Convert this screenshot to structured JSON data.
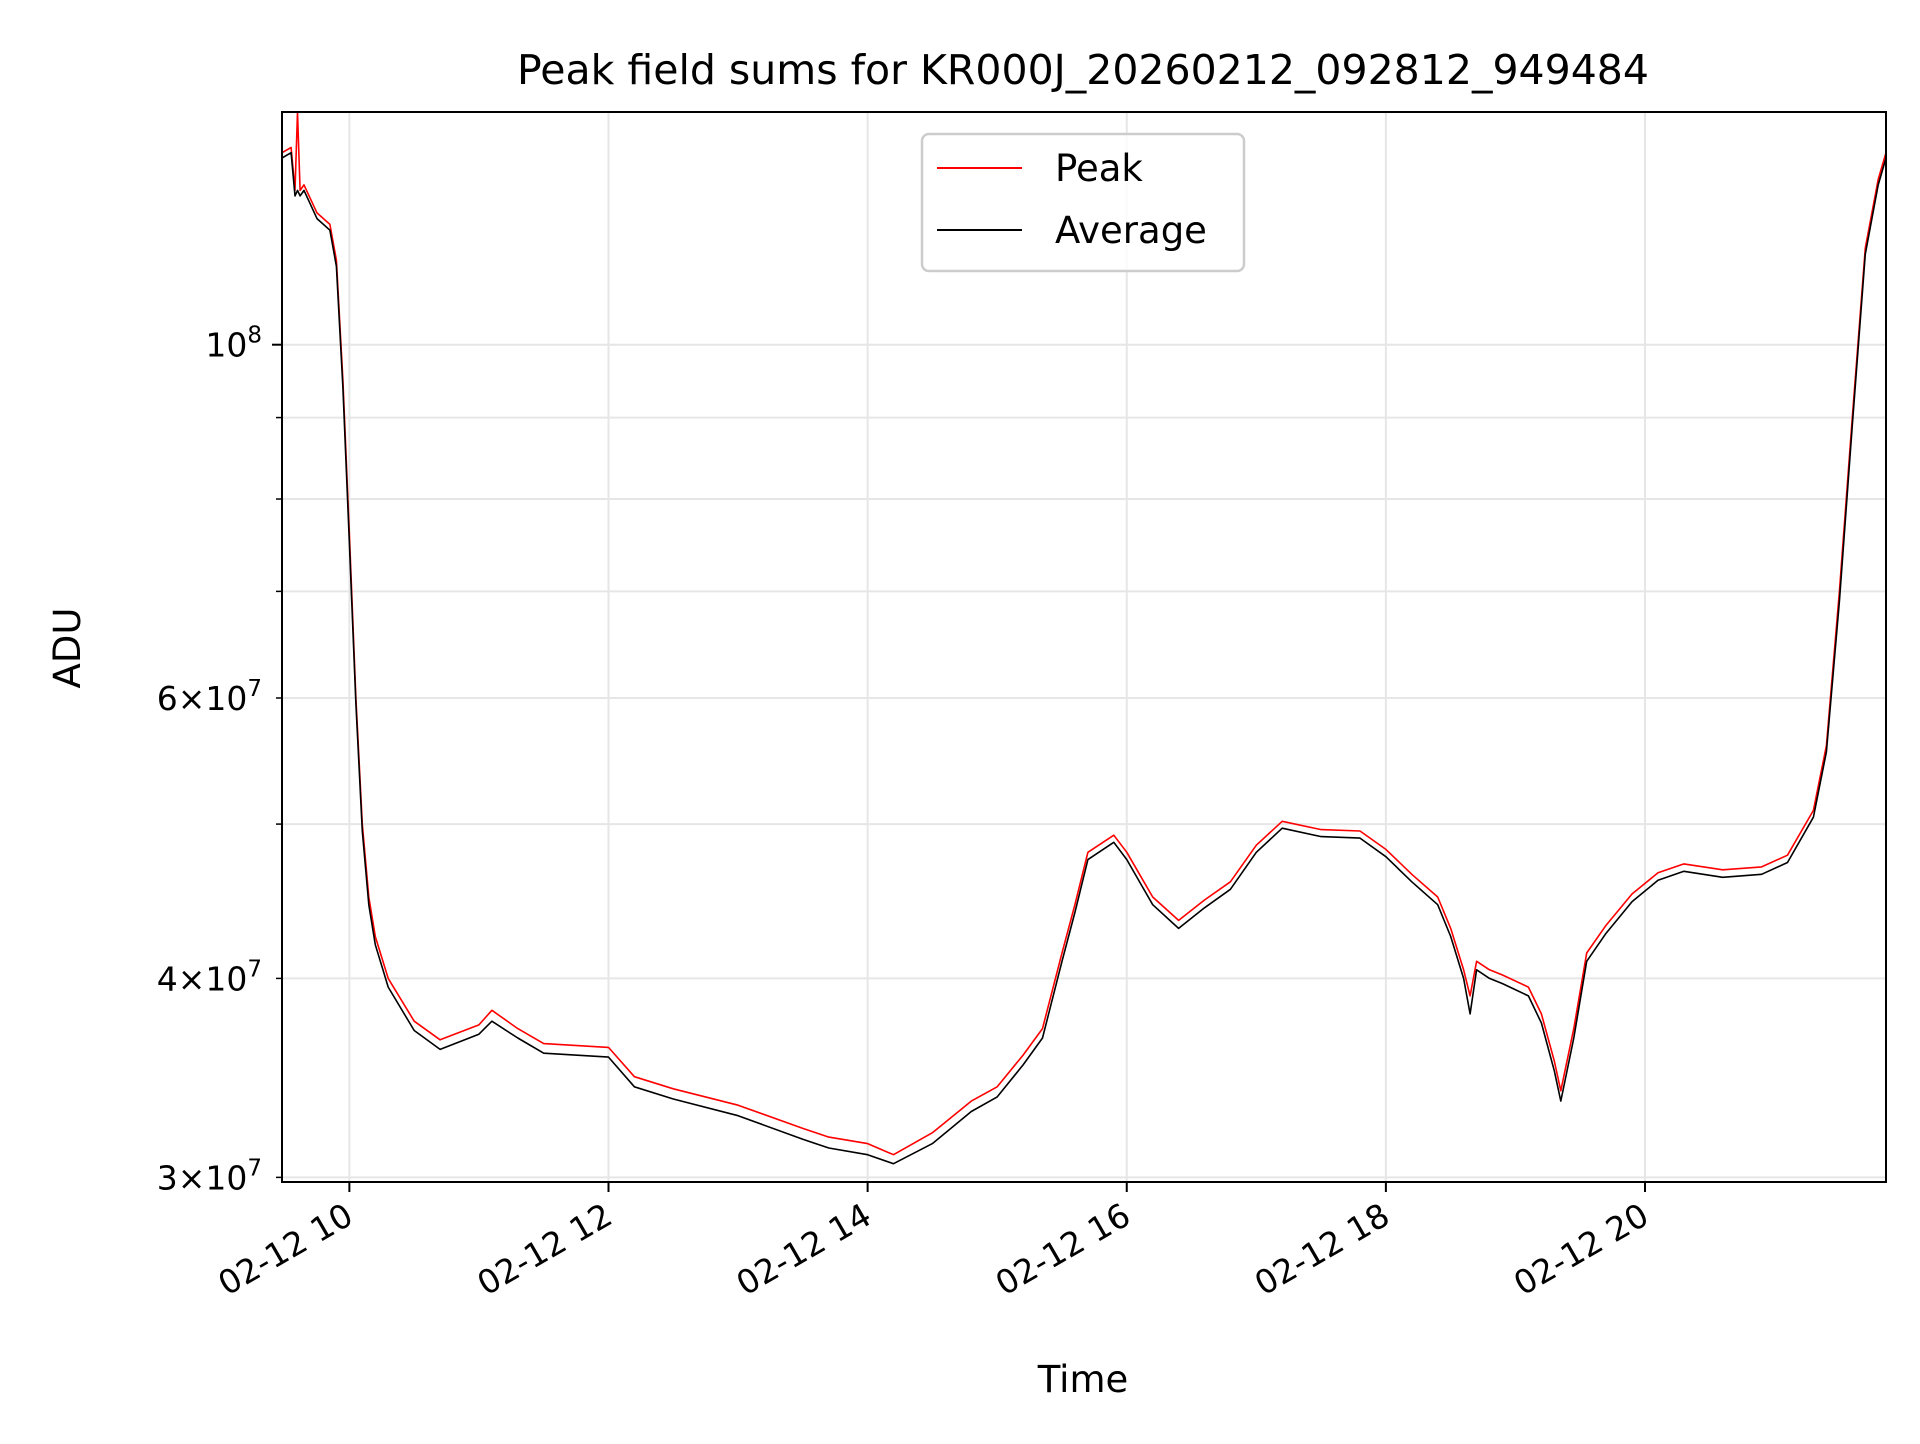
{
  "chart_data": {
    "type": "line",
    "title": "Peak field sums for KR000J_20260212_092812_949484",
    "xlabel": "Time",
    "ylabel": "ADU",
    "x_unit": "hour of 2026-02-12",
    "xlim": [
      9.48,
      21.86
    ],
    "ylim": [
      29800000,
      140000000
    ],
    "yscale": "log",
    "grid": true,
    "legend_position": "upper center",
    "x_ticks": [
      {
        "value": 10,
        "label": "02-12 10"
      },
      {
        "value": 12,
        "label": "02-12 12"
      },
      {
        "value": 14,
        "label": "02-12 14"
      },
      {
        "value": 16,
        "label": "02-12 16"
      },
      {
        "value": 18,
        "label": "02-12 18"
      },
      {
        "value": 20,
        "label": "02-12 20"
      }
    ],
    "y_ticks_major": [
      {
        "value": 100000000,
        "base": "10",
        "exp": "8"
      }
    ],
    "y_ticks_minor": [
      {
        "value": 30000000,
        "mant": "3",
        "base": "10",
        "exp": "7"
      },
      {
        "value": 40000000,
        "mant": "4",
        "base": "10",
        "exp": "7"
      },
      {
        "value": 50000000,
        "mant": "",
        "base": "",
        "exp": ""
      },
      {
        "value": 60000000,
        "mant": "6",
        "base": "10",
        "exp": "7"
      },
      {
        "value": 70000000,
        "mant": "",
        "base": "",
        "exp": ""
      },
      {
        "value": 80000000,
        "mant": "",
        "base": "",
        "exp": ""
      },
      {
        "value": 90000000,
        "mant": "",
        "base": "",
        "exp": ""
      }
    ],
    "series": [
      {
        "name": "Peak",
        "color": "#ff0000",
        "x": [
          9.48,
          9.55,
          9.58,
          9.6,
          9.62,
          9.65,
          9.75,
          9.85,
          9.9,
          9.95,
          10.0,
          10.05,
          10.1,
          10.15,
          10.2,
          10.3,
          10.5,
          10.7,
          11.0,
          11.1,
          11.3,
          11.5,
          12.0,
          12.2,
          12.5,
          13.0,
          13.5,
          13.7,
          14.0,
          14.2,
          14.5,
          14.8,
          15.0,
          15.2,
          15.35,
          15.5,
          15.6,
          15.7,
          15.9,
          16.0,
          16.2,
          16.4,
          16.6,
          16.8,
          17.0,
          17.2,
          17.5,
          17.8,
          18.0,
          18.2,
          18.4,
          18.5,
          18.6,
          18.65,
          18.7,
          18.8,
          18.9,
          19.1,
          19.2,
          19.3,
          19.35,
          19.45,
          19.55,
          19.7,
          19.9,
          20.1,
          20.3,
          20.6,
          20.9,
          21.1,
          21.3,
          21.4,
          21.5,
          21.6,
          21.7,
          21.8,
          21.86
        ],
        "y": [
          132000000,
          133000000,
          125000000,
          140000000,
          125000000,
          126000000,
          121000000,
          119000000,
          113000000,
          95000000,
          76000000,
          60000000,
          50000000,
          45000000,
          42500000,
          40000000,
          37600000,
          36600000,
          37400000,
          38200000,
          37200000,
          36400000,
          36200000,
          34700000,
          34100000,
          33300000,
          32200000,
          31800000,
          31500000,
          31000000,
          32000000,
          33500000,
          34200000,
          35800000,
          37200000,
          41500000,
          44500000,
          48000000,
          49200000,
          48000000,
          45000000,
          43500000,
          44800000,
          46000000,
          48500000,
          50200000,
          49600000,
          49500000,
          48200000,
          46500000,
          45000000,
          43000000,
          40500000,
          39000000,
          41000000,
          40500000,
          40200000,
          39500000,
          38000000,
          35500000,
          34000000,
          37200000,
          41500000,
          43200000,
          45200000,
          46600000,
          47200000,
          46800000,
          47000000,
          47800000,
          51000000,
          56000000,
          70000000,
          90000000,
          115000000,
          127000000,
          132000000
        ]
      },
      {
        "name": "Average",
        "color": "#000000",
        "x": [
          9.48,
          9.55,
          9.58,
          9.6,
          9.62,
          9.65,
          9.75,
          9.85,
          9.9,
          9.95,
          10.0,
          10.05,
          10.1,
          10.15,
          10.2,
          10.3,
          10.5,
          10.7,
          11.0,
          11.1,
          11.3,
          11.5,
          12.0,
          12.2,
          12.5,
          13.0,
          13.5,
          13.7,
          14.0,
          14.2,
          14.5,
          14.8,
          15.0,
          15.2,
          15.35,
          15.5,
          15.6,
          15.7,
          15.9,
          16.0,
          16.2,
          16.4,
          16.6,
          16.8,
          17.0,
          17.2,
          17.5,
          17.8,
          18.0,
          18.2,
          18.4,
          18.5,
          18.6,
          18.65,
          18.7,
          18.8,
          18.9,
          19.1,
          19.2,
          19.3,
          19.35,
          19.45,
          19.55,
          19.7,
          19.9,
          20.1,
          20.3,
          20.6,
          20.9,
          21.1,
          21.3,
          21.4,
          21.5,
          21.6,
          21.7,
          21.8,
          21.86
        ],
        "y": [
          131000000,
          132000000,
          124000000,
          125000000,
          124000000,
          125000000,
          120000000,
          118000000,
          112000000,
          94000000,
          75000000,
          59500000,
          49500000,
          44500000,
          42000000,
          39500000,
          37100000,
          36100000,
          36900000,
          37600000,
          36700000,
          35900000,
          35700000,
          34200000,
          33600000,
          32800000,
          31700000,
          31300000,
          31000000,
          30600000,
          31500000,
          33000000,
          33700000,
          35300000,
          36700000,
          41000000,
          44000000,
          47500000,
          48700000,
          47500000,
          44500000,
          43000000,
          44300000,
          45500000,
          48000000,
          49700000,
          49100000,
          49000000,
          47700000,
          46000000,
          44500000,
          42500000,
          40000000,
          38000000,
          40500000,
          40000000,
          39700000,
          39000000,
          37500000,
          35000000,
          33500000,
          36700000,
          41000000,
          42700000,
          44700000,
          46100000,
          46700000,
          46300000,
          46500000,
          47300000,
          50500000,
          55500000,
          69000000,
          89000000,
          114000000,
          126000000,
          131000000
        ]
      }
    ]
  }
}
